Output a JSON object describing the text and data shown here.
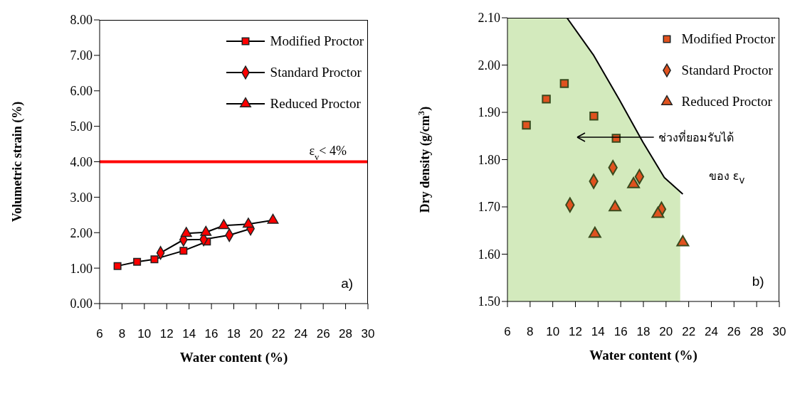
{
  "chart_data": [
    {
      "type": "line",
      "xlabel": "Water content (%)",
      "ylabel": "Volumetric strain (%)",
      "xlim": [
        6,
        30
      ],
      "ylim": [
        0,
        8
      ],
      "xticks": [
        6,
        8,
        10,
        12,
        14,
        16,
        18,
        20,
        22,
        24,
        26,
        28,
        30
      ],
      "yticks": [
        {
          "value": 0,
          "label": "0.00"
        },
        {
          "value": 1,
          "label": "1.00"
        },
        {
          "value": 2,
          "label": "2.00"
        },
        {
          "value": 3,
          "label": "3.00"
        },
        {
          "value": 4,
          "label": "4.00"
        },
        {
          "value": 5,
          "label": "5.00"
        },
        {
          "value": 6,
          "label": "6.00"
        },
        {
          "value": 7,
          "label": "7.00"
        },
        {
          "value": 8,
          "label": "8.00"
        }
      ],
      "legend": "top right",
      "line_style": "solid",
      "series": [
        {
          "name": "Modified Proctor",
          "color": "#ff0000",
          "marker": "square",
          "x": [
            7.6,
            9.35,
            10.9,
            13.5,
            15.6
          ],
          "values": [
            1.06,
            1.18,
            1.25,
            1.49,
            1.75
          ]
        },
        {
          "name": "Standard Proctor",
          "color": "#ff0000",
          "marker": "diamond",
          "x": [
            11.45,
            13.5,
            15.3,
            17.6,
            19.5
          ],
          "values": [
            1.43,
            1.8,
            1.81,
            1.93,
            2.11
          ]
        },
        {
          "name": "Reduced Proctor",
          "color": "#ff0000",
          "marker": "triangle",
          "x": [
            13.75,
            15.5,
            17.1,
            19.3,
            21.5
          ],
          "values": [
            1.98,
            2.01,
            2.2,
            2.24,
            2.35
          ]
        }
      ],
      "ref_lines": [
        {
          "axis": "y",
          "value": 4,
          "label": "ε$_{v}$< 4%",
          "color": "#ff0000"
        }
      ],
      "annotations": [
        "a)"
      ]
    },
    {
      "type": "scatter",
      "xlabel": "Water content (%)",
      "ylabel": "Dry density (g/cm$^{3}$)",
      "xlim": [
        6,
        30
      ],
      "ylim": [
        1.5,
        2.1
      ],
      "xticks": [
        6,
        8,
        10,
        12,
        14,
        16,
        18,
        20,
        22,
        24,
        26,
        28,
        30
      ],
      "yticks": [
        {
          "value": 1.5,
          "label": "1.50"
        },
        {
          "value": 1.6,
          "label": "1.60"
        },
        {
          "value": 1.7,
          "label": "1.70"
        },
        {
          "value": 1.8,
          "label": "1.80"
        },
        {
          "value": 1.9,
          "label": "1.90"
        },
        {
          "value": 2.0,
          "label": "2.00"
        },
        {
          "value": 2.1,
          "label": "2.10"
        }
      ],
      "legend": "top right",
      "series": [
        {
          "type": "area",
          "color": "#d3eabd",
          "x": [
            6,
            11.25,
            13.57,
            15.87,
            17.96,
            19.85,
            21.25
          ],
          "values": [
            2.1,
            2.1,
            2.022,
            1.927,
            1.837,
            1.762,
            1.73
          ]
        },
        {
          "type": "line",
          "color": "#000000",
          "marker": "none",
          "x": [
            11.25,
            13.57,
            15.87,
            17.96,
            19.85,
            21.48
          ],
          "values": [
            2.1,
            2.022,
            1.927,
            1.837,
            1.762,
            1.727
          ]
        },
        {
          "name": "Modified Proctor",
          "color": "#e0521f",
          "marker": "square",
          "x": [
            7.67,
            9.43,
            11.02,
            13.63,
            15.6
          ],
          "values": [
            1.873,
            1.928,
            1.961,
            1.892,
            1.845
          ]
        },
        {
          "name": "Standard Proctor",
          "color": "#e0521f",
          "marker": "diamond",
          "x": [
            11.52,
            13.61,
            15.31,
            17.65,
            19.6
          ],
          "values": [
            1.704,
            1.754,
            1.783,
            1.764,
            1.695
          ]
        },
        {
          "name": "Reduced Proctor",
          "color": "#e0521f",
          "marker": "triangle",
          "x": [
            13.72,
            15.5,
            17.13,
            19.28,
            21.48
          ],
          "values": [
            1.643,
            1.699,
            1.748,
            1.685,
            1.625
          ]
        }
      ],
      "annotations": [
        "b)",
        "ช่วงที่ยอมรับได้",
        "ของ ε$_{v}$"
      ]
    }
  ]
}
